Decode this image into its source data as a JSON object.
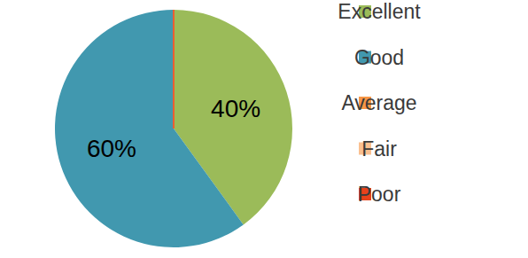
{
  "chart_data": {
    "type": "pie",
    "categories": [
      "Excellent",
      "Good",
      "Average",
      "Fair",
      "Poor"
    ],
    "values": [
      40,
      60,
      0,
      0,
      0
    ],
    "value_labels": [
      "40%",
      "60%",
      null,
      null,
      null
    ],
    "colors": [
      "#9bbb59",
      "#4198af",
      "#f79646",
      "#fac090",
      "#e8421b"
    ],
    "data_labels": true,
    "legend": "right"
  }
}
